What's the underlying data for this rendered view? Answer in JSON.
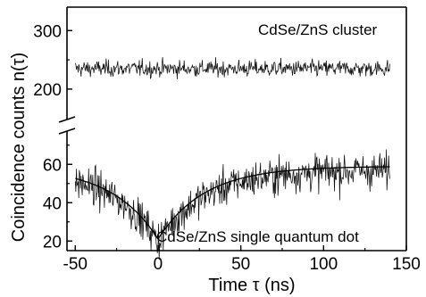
{
  "chart_data": {
    "type": "line",
    "xlabel": "Time τ (ns)",
    "ylabel": "Coincidence counts n(τ)",
    "xlim": [
      -55,
      150
    ],
    "x_ticks": [
      "-50",
      "0",
      "50",
      "100",
      "150"
    ],
    "upper_panel": {
      "ylim": [
        180,
        340
      ],
      "y_ticks": [
        "200",
        "300"
      ],
      "annotation": "CdSe/ZnS cluster",
      "series": [
        {
          "style": "noisy",
          "x_range": [
            -50,
            140
          ],
          "mean": 235,
          "noise": 12
        }
      ]
    },
    "lower_panel": {
      "ylim": [
        15,
        75
      ],
      "y_ticks": [
        "20",
        "40",
        "60"
      ],
      "annotation": "CdSe/ZnS single quantum dot",
      "series": [
        {
          "style": "noisy",
          "x_range": [
            -50,
            140
          ],
          "model": "antibunching",
          "baseline": 57,
          "minimum": 20,
          "tau_ns": 28,
          "noise": 8
        },
        {
          "style": "fit",
          "x_range": [
            -50,
            140
          ],
          "model": "antibunching",
          "baseline": 59,
          "minimum": 21,
          "tau_ns": 28
        }
      ]
    },
    "axis_break": true,
    "grid": false
  }
}
